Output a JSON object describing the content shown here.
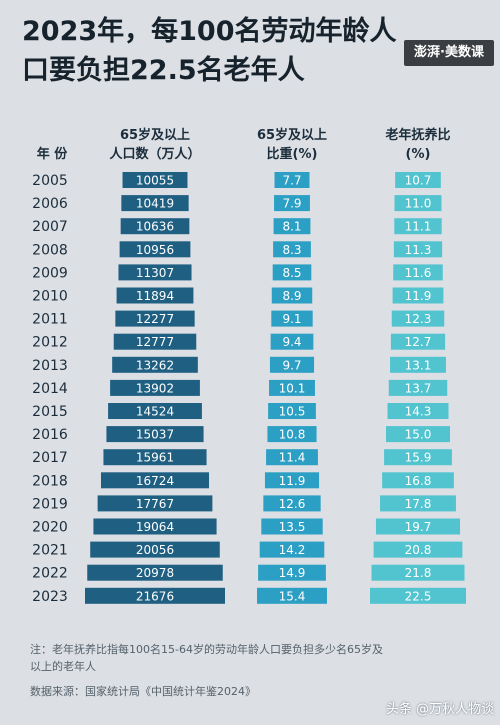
{
  "title": "2023年，每100名劳动年龄人口要负担22.5名老年人",
  "brand": "澎湃·美数课",
  "chart_data": {
    "type": "table",
    "columns": {
      "year": "年 份",
      "population": "65岁及以上人口数（万人）",
      "share": "65岁及以上比重(%)",
      "ratio": "老年抚养比(%)"
    },
    "rows": [
      {
        "year": "2005",
        "population": 10055,
        "share": 7.7,
        "ratio": 10.7
      },
      {
        "year": "2006",
        "population": 10419,
        "share": 7.9,
        "ratio": 11.0
      },
      {
        "year": "2007",
        "population": 10636,
        "share": 8.1,
        "ratio": 11.1
      },
      {
        "year": "2008",
        "population": 10956,
        "share": 8.3,
        "ratio": 11.3
      },
      {
        "year": "2009",
        "population": 11307,
        "share": 8.5,
        "ratio": 11.6
      },
      {
        "year": "2010",
        "population": 11894,
        "share": 8.9,
        "ratio": 11.9
      },
      {
        "year": "2011",
        "population": 12277,
        "share": 9.1,
        "ratio": 12.3
      },
      {
        "year": "2012",
        "population": 12777,
        "share": 9.4,
        "ratio": 12.7
      },
      {
        "year": "2013",
        "population": 13262,
        "share": 9.7,
        "ratio": 13.1
      },
      {
        "year": "2014",
        "population": 13902,
        "share": 10.1,
        "ratio": 13.7
      },
      {
        "year": "2015",
        "population": 14524,
        "share": 10.5,
        "ratio": 14.3
      },
      {
        "year": "2016",
        "population": 15037,
        "share": 10.8,
        "ratio": 15.0
      },
      {
        "year": "2017",
        "population": 15961,
        "share": 11.4,
        "ratio": 15.9
      },
      {
        "year": "2018",
        "population": 16724,
        "share": 11.9,
        "ratio": 16.8
      },
      {
        "year": "2019",
        "population": 17767,
        "share": 12.6,
        "ratio": 17.8
      },
      {
        "year": "2020",
        "population": 19064,
        "share": 13.5,
        "ratio": 19.7
      },
      {
        "year": "2021",
        "population": 20056,
        "share": 14.2,
        "ratio": 20.8
      },
      {
        "year": "2022",
        "population": 20978,
        "share": 14.9,
        "ratio": 21.8
      },
      {
        "year": "2023",
        "population": 21676,
        "share": 15.4,
        "ratio": 22.5
      }
    ],
    "colors": {
      "population": "#1f5f82",
      "share": "#2b9fc4",
      "ratio": "#52c4cf",
      "text_light": "#ffffff",
      "text_dark": "#1b2d3c"
    }
  },
  "note": "注：老年抚养比指每100名15-64岁的劳动年龄人口要负担多少名65岁及以上的老年人",
  "source": "数据来源：国家统计局《中国统计年鉴2024》",
  "watermark": "头条 @万秋人物谈"
}
